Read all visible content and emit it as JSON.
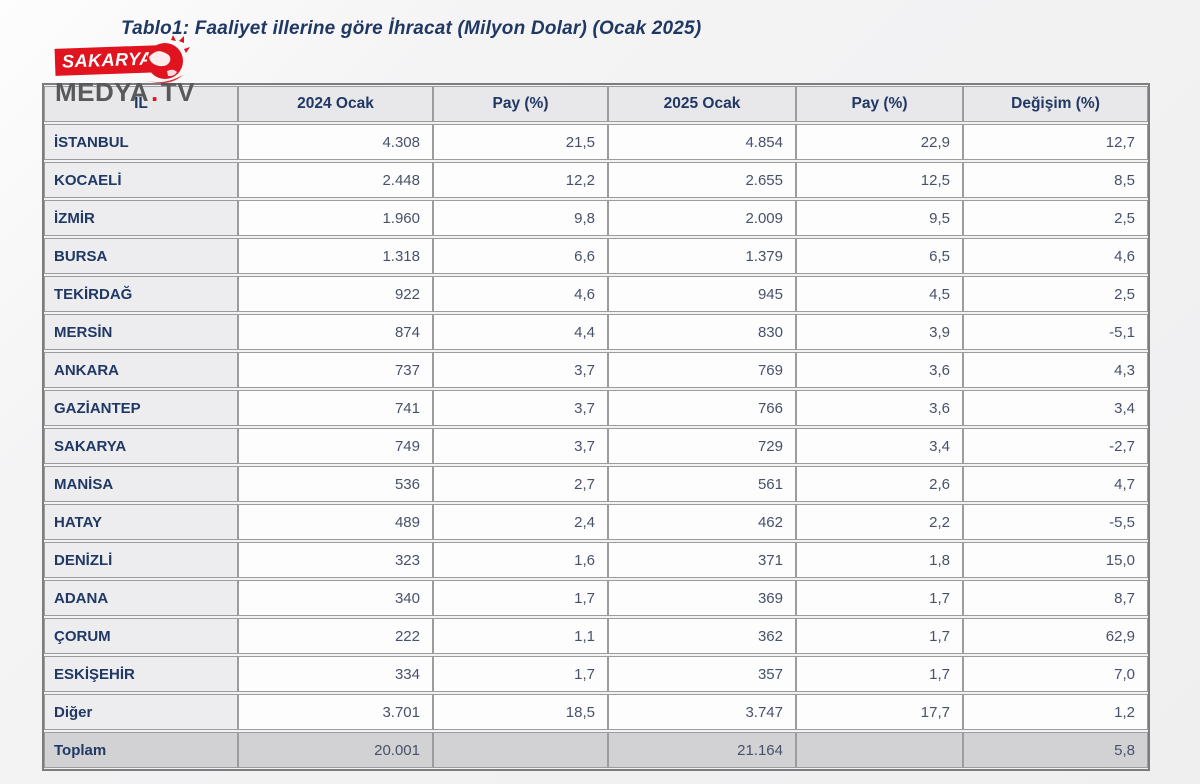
{
  "title": "Tablo1: Faaliyet illerine göre İhracat (Milyon Dolar) (Ocak 2025)",
  "logo": {
    "banner": "SAKARYA",
    "medya": "MEDYA",
    "dot": ".",
    "tv": "TV"
  },
  "colors": {
    "navy": "#203864",
    "logo_red": "#e0131f",
    "logo_gray": "#58595b",
    "header_bg": "#e8e8ea",
    "label_bg": "#ededef",
    "total_bg": "#d2d2d4",
    "number_text": "#475169",
    "border": "#9c9c9e"
  },
  "table": {
    "columns": [
      "İL",
      "2024 Ocak",
      "Pay  (%)",
      "2025 Ocak",
      "Pay  (%)",
      "Değişim (%)"
    ],
    "rows": [
      [
        "İSTANBUL",
        "4.308",
        "21,5",
        "4.854",
        "22,9",
        "12,7"
      ],
      [
        "KOCAELİ",
        "2.448",
        "12,2",
        "2.655",
        "12,5",
        "8,5"
      ],
      [
        "İZMİR",
        "1.960",
        "9,8",
        "2.009",
        "9,5",
        "2,5"
      ],
      [
        "BURSA",
        "1.318",
        "6,6",
        "1.379",
        "6,5",
        "4,6"
      ],
      [
        "TEKİRDAĞ",
        "922",
        "4,6",
        "945",
        "4,5",
        "2,5"
      ],
      [
        "MERSİN",
        "874",
        "4,4",
        "830",
        "3,9",
        "-5,1"
      ],
      [
        "ANKARA",
        "737",
        "3,7",
        "769",
        "3,6",
        "4,3"
      ],
      [
        "GAZİANTEP",
        "741",
        "3,7",
        "766",
        "3,6",
        "3,4"
      ],
      [
        "SAKARYA",
        "749",
        "3,7",
        "729",
        "3,4",
        "-2,7"
      ],
      [
        "MANİSA",
        "536",
        "2,7",
        "561",
        "2,6",
        "4,7"
      ],
      [
        "HATAY",
        "489",
        "2,4",
        "462",
        "2,2",
        "-5,5"
      ],
      [
        "DENİZLİ",
        "323",
        "1,6",
        "371",
        "1,8",
        "15,0"
      ],
      [
        "ADANA",
        "340",
        "1,7",
        "369",
        "1,7",
        "8,7"
      ],
      [
        "ÇORUM",
        "222",
        "1,1",
        "362",
        "1,7",
        "62,9"
      ],
      [
        "ESKİŞEHİR",
        "334",
        "1,7",
        "357",
        "1,7",
        "7,0"
      ],
      [
        "Diğer",
        "3.701",
        "18,5",
        "3.747",
        "17,7",
        "1,2"
      ]
    ],
    "total": [
      "Toplam",
      "20.001",
      "",
      "21.164",
      "",
      "5,8"
    ]
  }
}
